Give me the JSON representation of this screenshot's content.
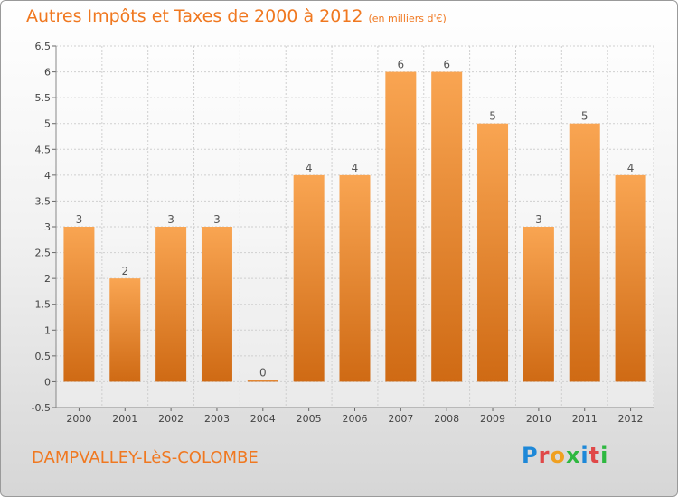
{
  "header": {
    "title": "Autres Impôts et Taxes de 2000 à 2012",
    "unit": "(en milliers d'€)"
  },
  "footer": {
    "commune": "DAMPVALLEY-LèS-COLOMBE",
    "logo_letters": [
      "P",
      "r",
      "o",
      "x",
      "i",
      "t",
      "i"
    ]
  },
  "colors": {
    "bar_light": "#f9a552",
    "bar_dark": "#cf6a14",
    "title": "#f07820"
  },
  "chart_data": {
    "type": "bar",
    "title": "Autres Impôts et Taxes de 2000 à 2012",
    "categories": [
      "2000",
      "2001",
      "2002",
      "2003",
      "2004",
      "2005",
      "2006",
      "2007",
      "2008",
      "2009",
      "2010",
      "2011",
      "2012"
    ],
    "values": [
      3,
      2,
      3,
      3,
      0,
      4,
      4,
      6,
      6,
      5,
      3,
      5,
      4
    ],
    "value_labels": [
      "3",
      "2",
      "3",
      "3",
      "0",
      "4",
      "4",
      "6",
      "6",
      "5",
      "3",
      "5",
      "4"
    ],
    "y_ticks": [
      "-0.5",
      "0",
      "0.5",
      "1",
      "1.5",
      "2",
      "2.5",
      "3",
      "3.5",
      "4",
      "4.5",
      "5",
      "5.5",
      "6",
      "6.5"
    ],
    "ylim": [
      -0.5,
      6.5
    ],
    "grid": true
  }
}
